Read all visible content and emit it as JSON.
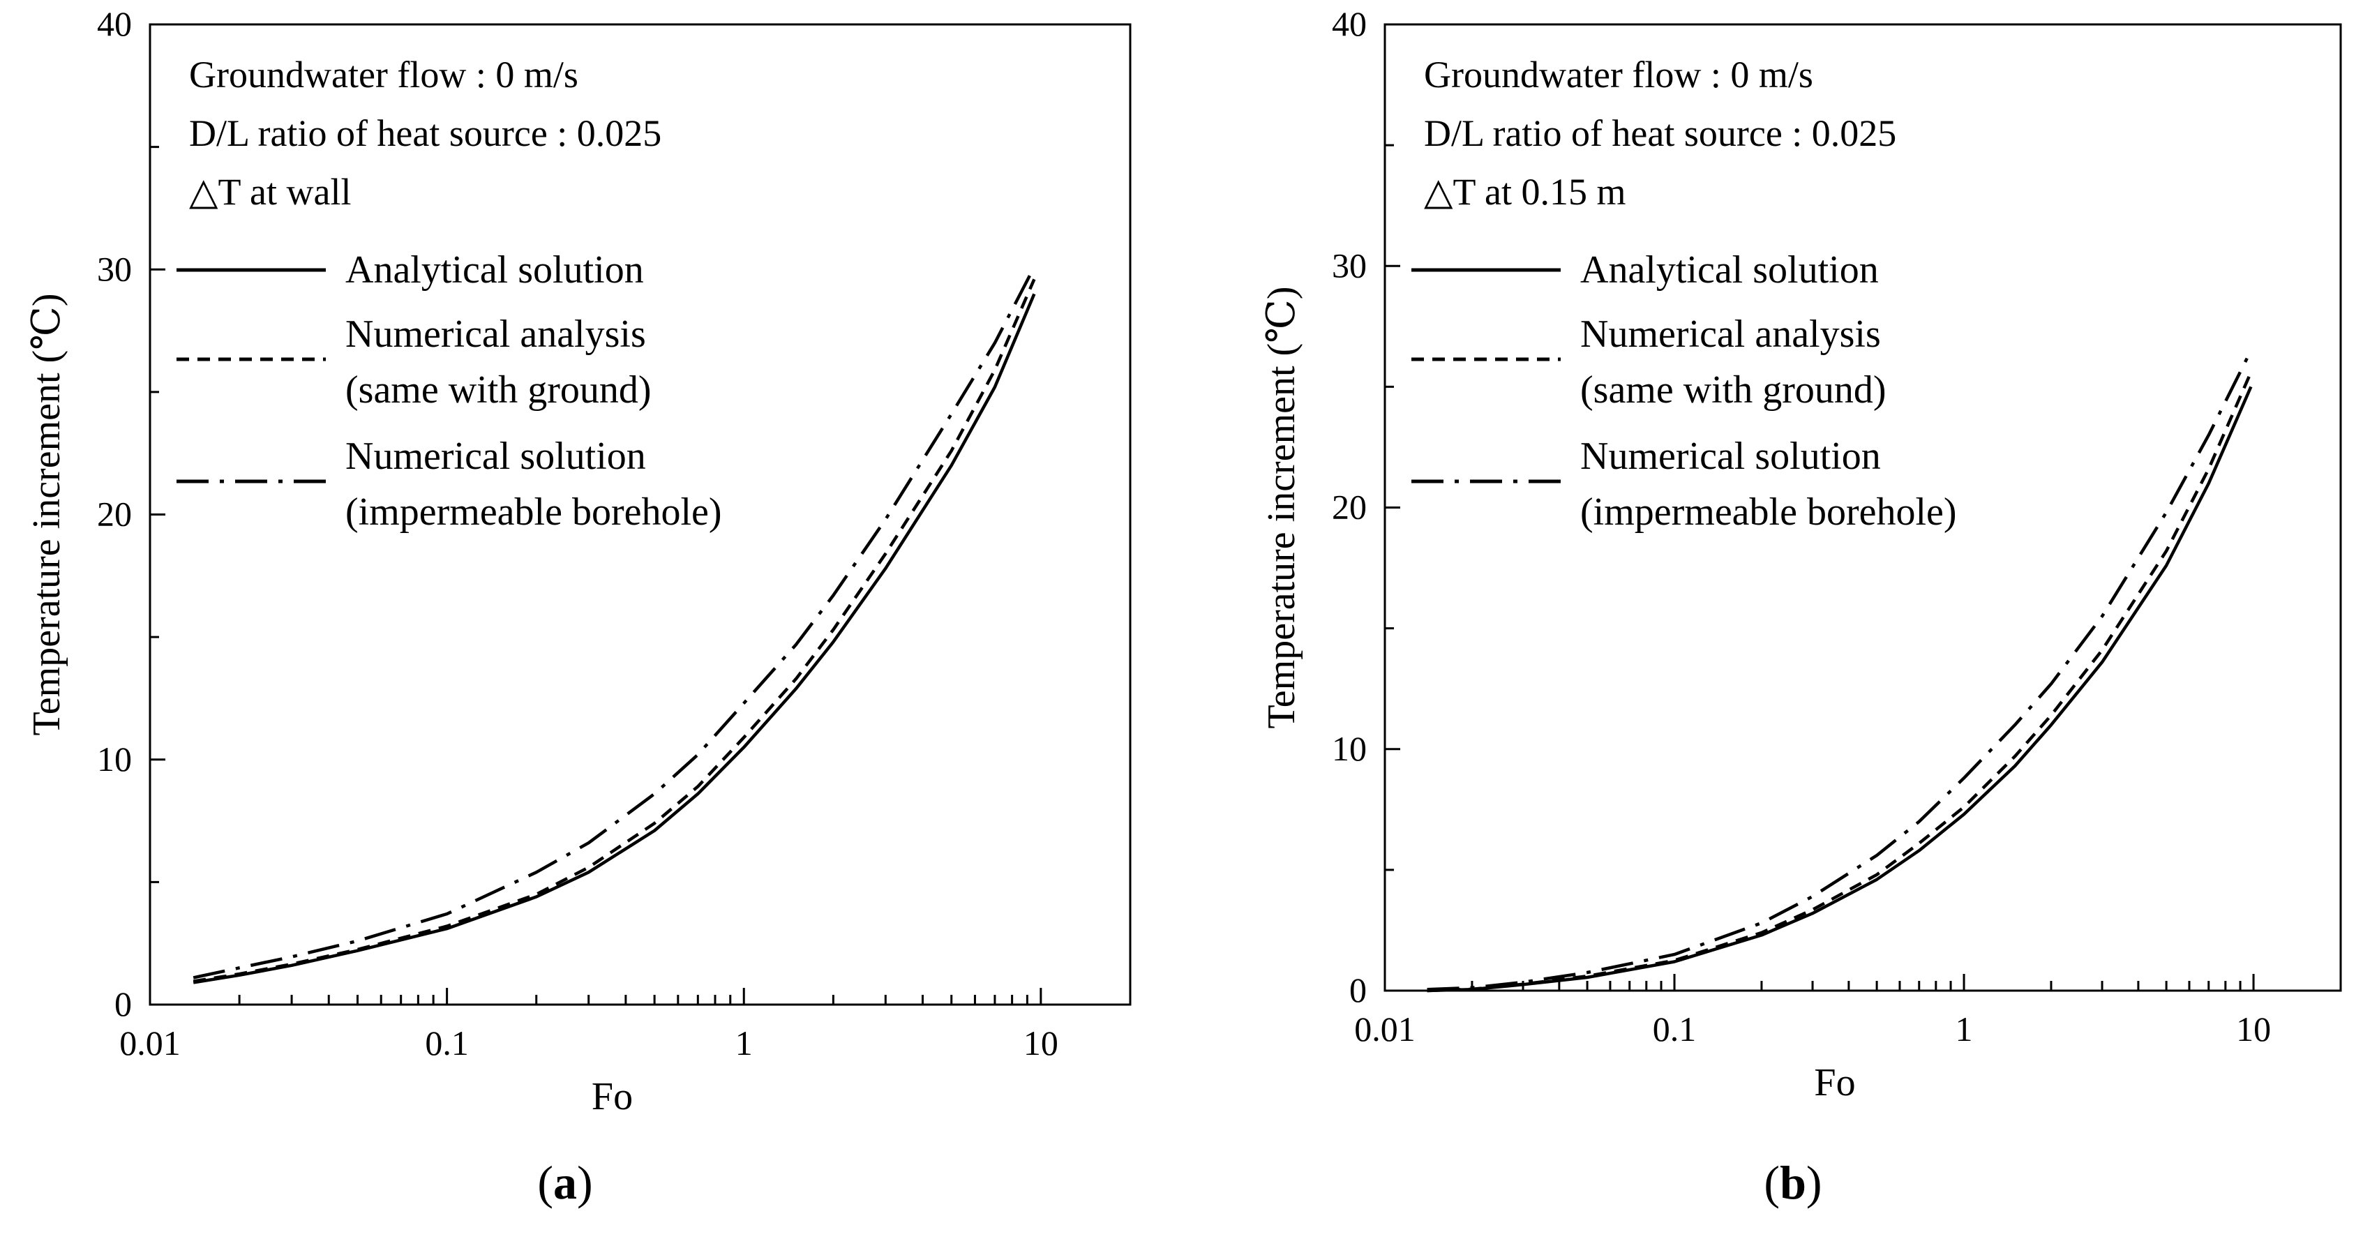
{
  "colors": {
    "line": "#000000",
    "background": "#ffffff"
  },
  "captions": {
    "a": "a",
    "b": "b"
  },
  "chart_data": [
    {
      "type": "line",
      "panel": "a",
      "xlabel": "Fo",
      "ylabel": "Temperature increment (℃)",
      "xscale": "log",
      "xlim": [
        0.01,
        20
      ],
      "ylim": [
        0,
        40
      ],
      "xticks": [
        "0.01",
        "0.1",
        "1",
        "10"
      ],
      "yticks": [
        "0",
        "10",
        "20",
        "30",
        "40"
      ],
      "legend_position": "top-left",
      "annotations": [
        "Groundwater flow : 0 m/s",
        "D/L ratio of heat source : 0.025",
        "△T at wall"
      ],
      "series": [
        {
          "name": "Analytical solution",
          "legend_lines": [
            "Analytical solution"
          ],
          "style": "solid",
          "x": [
            0.014,
            0.02,
            0.03,
            0.05,
            0.1,
            0.2,
            0.3,
            0.5,
            0.7,
            1,
            1.5,
            2,
            3,
            5,
            7,
            9.5
          ],
          "y": [
            0.9,
            1.2,
            1.6,
            2.2,
            3.1,
            4.4,
            5.4,
            7.1,
            8.6,
            10.5,
            12.9,
            14.8,
            17.8,
            22.0,
            25.2,
            29.0
          ]
        },
        {
          "name": "Numerical analysis (same with ground)",
          "legend_lines": [
            "Numerical analysis",
            "(same with ground)"
          ],
          "style": "dashed",
          "x": [
            0.014,
            0.02,
            0.03,
            0.05,
            0.1,
            0.2,
            0.3,
            0.5,
            0.7,
            1,
            1.5,
            2,
            3,
            5,
            7,
            9.5
          ],
          "y": [
            0.95,
            1.25,
            1.65,
            2.25,
            3.2,
            4.5,
            5.6,
            7.4,
            8.9,
            10.9,
            13.3,
            15.3,
            18.4,
            22.6,
            25.9,
            29.6
          ]
        },
        {
          "name": "Numerical solution (impermeable borehole)",
          "legend_lines": [
            "Numerical solution",
            "(impermeable borehole)"
          ],
          "style": "dashdot",
          "x": [
            0.014,
            0.02,
            0.03,
            0.05,
            0.1,
            0.2,
            0.3,
            0.5,
            0.7,
            1,
            1.5,
            2,
            3,
            5,
            7,
            9.5
          ],
          "y": [
            1.1,
            1.5,
            1.95,
            2.6,
            3.7,
            5.4,
            6.6,
            8.6,
            10.2,
            12.3,
            14.7,
            16.7,
            19.8,
            24.1,
            27.0,
            30.1
          ]
        }
      ]
    },
    {
      "type": "line",
      "panel": "b",
      "xlabel": "Fo",
      "ylabel": "Temperature increment (℃)",
      "xscale": "log",
      "xlim": [
        0.01,
        20
      ],
      "ylim": [
        0,
        40
      ],
      "xticks": [
        "0.01",
        "0.1",
        "1",
        "10"
      ],
      "yticks": [
        "0",
        "10",
        "20",
        "30",
        "40"
      ],
      "legend_position": "top-left",
      "annotations": [
        "Groundwater flow : 0 m/s",
        "D/L ratio of heat source : 0.025",
        "△T at 0.15 m"
      ],
      "series": [
        {
          "name": "Analytical solution",
          "legend_lines": [
            "Analytical solution"
          ],
          "style": "solid",
          "x": [
            0.014,
            0.02,
            0.03,
            0.05,
            0.1,
            0.2,
            0.3,
            0.5,
            0.7,
            1,
            1.5,
            2,
            3,
            5,
            7,
            9.8
          ],
          "y": [
            0.0,
            0.05,
            0.25,
            0.55,
            1.2,
            2.3,
            3.2,
            4.6,
            5.8,
            7.3,
            9.3,
            11.0,
            13.6,
            17.6,
            21.0,
            25.0
          ]
        },
        {
          "name": "Numerical analysis (same with ground)",
          "legend_lines": [
            "Numerical analysis",
            "(same with ground)"
          ],
          "style": "dashed",
          "x": [
            0.014,
            0.02,
            0.03,
            0.05,
            0.1,
            0.2,
            0.3,
            0.5,
            0.7,
            1,
            1.5,
            2,
            3,
            5,
            7,
            9.8
          ],
          "y": [
            0.0,
            0.06,
            0.27,
            0.6,
            1.25,
            2.4,
            3.35,
            4.8,
            6.1,
            7.6,
            9.7,
            11.4,
            14.1,
            18.2,
            21.6,
            25.6
          ]
        },
        {
          "name": "Numerical solution (impermeable borehole)",
          "legend_lines": [
            "Numerical solution",
            "(impermeable borehole)"
          ],
          "style": "dashdot",
          "x": [
            0.014,
            0.02,
            0.03,
            0.05,
            0.1,
            0.2,
            0.3,
            0.5,
            0.7,
            1,
            1.5,
            2,
            3,
            5,
            7,
            9.8
          ],
          "y": [
            0.05,
            0.12,
            0.35,
            0.75,
            1.5,
            2.8,
            3.9,
            5.6,
            7.0,
            8.8,
            11.0,
            12.7,
            15.5,
            19.8,
            23.0,
            26.5
          ]
        }
      ]
    }
  ]
}
